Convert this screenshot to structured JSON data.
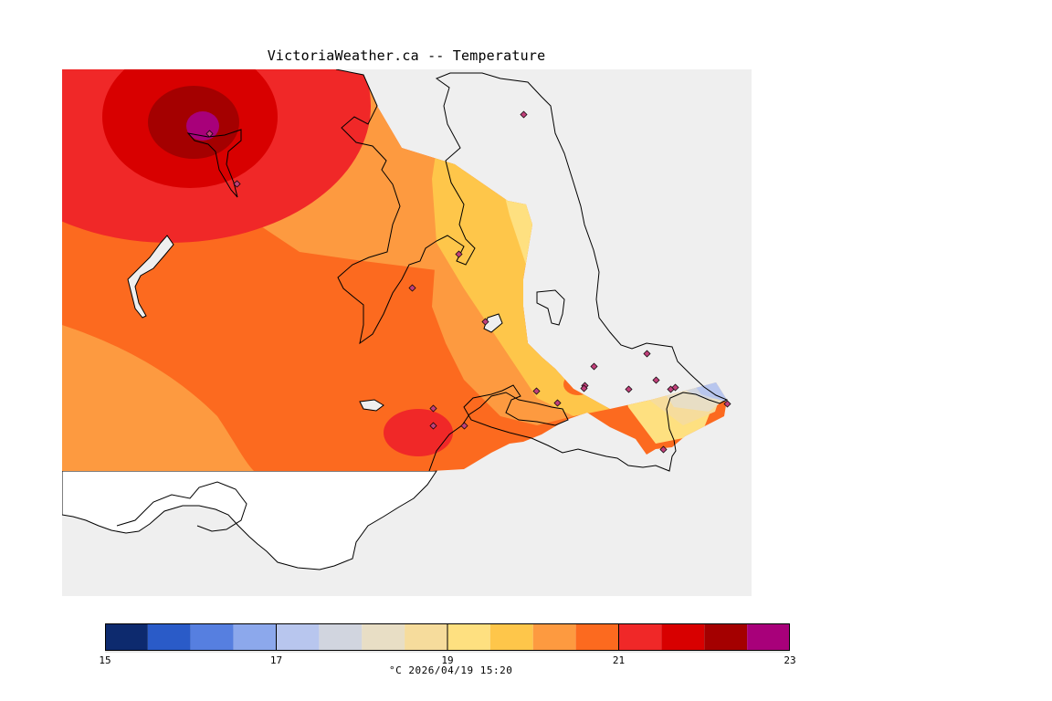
{
  "title": "VictoriaWeather.ca -- Temperature",
  "legend": {
    "min": 15,
    "max": 23,
    "tick_labels": [
      "15",
      "17",
      "19",
      "21",
      "23"
    ],
    "bands": [
      {
        "from": 15.0,
        "to": 15.5,
        "color": "#0d2a6e"
      },
      {
        "from": 15.5,
        "to": 16.0,
        "color": "#2a5bc8"
      },
      {
        "from": 16.0,
        "to": 16.5,
        "color": "#567fe0"
      },
      {
        "from": 16.5,
        "to": 17.0,
        "color": "#8ca8ec"
      },
      {
        "from": 17.0,
        "to": 17.5,
        "color": "#b8c6ee"
      },
      {
        "from": 17.5,
        "to": 18.0,
        "color": "#d1d5df"
      },
      {
        "from": 18.0,
        "to": 18.5,
        "color": "#e8dec5"
      },
      {
        "from": 18.5,
        "to": 19.0,
        "color": "#f6dc9c"
      },
      {
        "from": 19.0,
        "to": 19.5,
        "color": "#fee080"
      },
      {
        "from": 19.5,
        "to": 20.0,
        "color": "#fec64a"
      },
      {
        "from": 20.0,
        "to": 20.5,
        "color": "#fd9a40"
      },
      {
        "from": 20.5,
        "to": 21.0,
        "color": "#fc6a1f"
      },
      {
        "from": 21.0,
        "to": 21.5,
        "color": "#f02828"
      },
      {
        "from": 21.5,
        "to": 22.0,
        "color": "#d80000"
      },
      {
        "from": 22.0,
        "to": 22.5,
        "color": "#a40000"
      },
      {
        "from": 22.5,
        "to": 23.0,
        "color": "#a8007a"
      }
    ],
    "units_timestamp": "°C  2026/04/19 15:20"
  },
  "colors": {
    "ocean": "#efefef",
    "unmapped_land": "#ffffff",
    "coastline": "#000000",
    "station_marker": "#c0407a"
  },
  "stations_count": 21
}
